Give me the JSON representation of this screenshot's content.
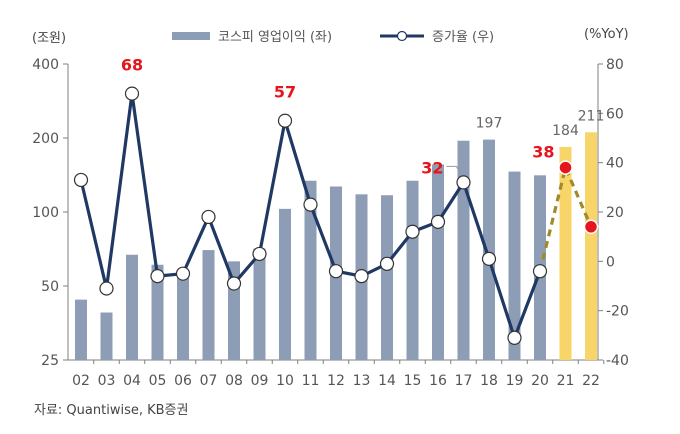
{
  "chart_data": {
    "type": "bar+line",
    "y_left_unit": "(조원)",
    "y_right_unit": "(%YoY)",
    "categories": [
      "02",
      "03",
      "04",
      "05",
      "06",
      "07",
      "08",
      "09",
      "10",
      "11",
      "12",
      "13",
      "14",
      "15",
      "16",
      "17",
      "18",
      "19",
      "20",
      "21",
      "22"
    ],
    "series": [
      {
        "name": "코스피 영업이익 (좌)",
        "axis": "left",
        "scale": "log",
        "values": [
          44,
          39,
          67,
          61,
          57,
          70,
          63,
          71,
          103,
          134,
          127,
          118,
          117,
          134,
          156,
          195,
          197,
          146,
          141,
          184,
          211
        ],
        "color": "#8d9db5",
        "forecast_color": "#f7d569",
        "forecast_from": "21"
      },
      {
        "name": "증가율 (우)",
        "axis": "right",
        "values": [
          33,
          -11,
          68,
          -6,
          -5,
          18,
          -9,
          3,
          57,
          23,
          -4,
          -6,
          -1,
          12,
          16,
          32,
          1,
          -31,
          -4,
          38,
          14
        ],
        "color": "#1f3864",
        "forecast_color": "#a08a2a",
        "forecast_from": "21",
        "forecast_marker_color": "#e5151b"
      }
    ],
    "y_left_ticks": [
      25,
      50,
      100,
      200,
      400
    ],
    "y_left_lim": [
      25,
      400
    ],
    "y_right_ticks": [
      -40,
      -20,
      0,
      20,
      40,
      60,
      80
    ],
    "y_right_lim": [
      -40,
      80
    ],
    "annotations": [
      {
        "x": "04",
        "text": "68",
        "series": "증가율 (우)",
        "color": "#e5151b"
      },
      {
        "x": "10",
        "text": "57",
        "series": "증가율 (우)",
        "color": "#e5151b"
      },
      {
        "x": "17",
        "text": "32",
        "series": "증가율 (우)",
        "color": "#e5151b"
      },
      {
        "x": "21",
        "text": "38",
        "series": "증가율 (우)",
        "color": "#e5151b"
      },
      {
        "x": "18",
        "text": "197",
        "series": "코스피 영업이익 (좌)",
        "color": "#666666"
      },
      {
        "x": "21",
        "text": "184",
        "series": "코스피 영업이익 (좌)",
        "color": "#666666"
      },
      {
        "x": "22",
        "text": "211",
        "series": "코스피 영업이익 (좌)",
        "color": "#666666"
      }
    ],
    "grid": false
  },
  "source": "자료: Quantiwise, KB증권"
}
